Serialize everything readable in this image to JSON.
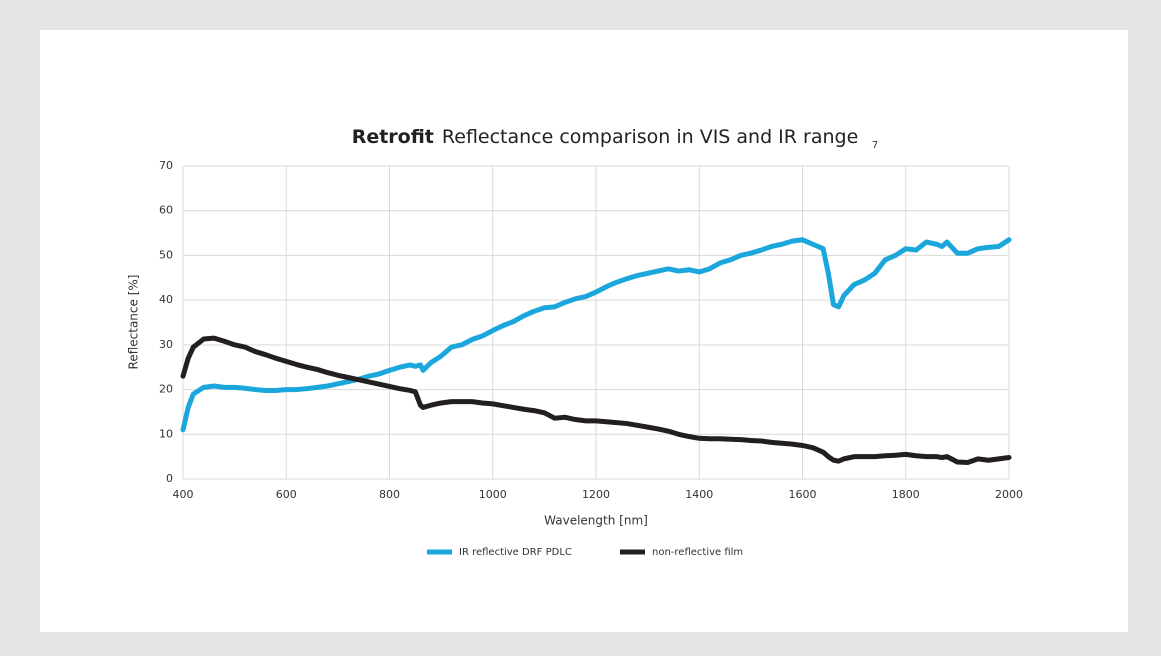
{
  "chart_data": {
    "type": "line",
    "title": "Reflectance comparison in VIS and IR range",
    "title_prefix": "Retrofit",
    "footnote": "7",
    "x_label": "Wavelength [nm]",
    "y_label": "Reflectance  [%]",
    "x": [
      400,
      410,
      420,
      440,
      460,
      480,
      500,
      520,
      540,
      560,
      580,
      600,
      620,
      640,
      660,
      680,
      700,
      720,
      740,
      760,
      780,
      800,
      820,
      840,
      850,
      860,
      865,
      880,
      900,
      920,
      940,
      960,
      980,
      1000,
      1020,
      1040,
      1060,
      1080,
      1100,
      1120,
      1140,
      1160,
      1180,
      1200,
      1220,
      1240,
      1260,
      1280,
      1300,
      1320,
      1340,
      1360,
      1380,
      1400,
      1420,
      1440,
      1460,
      1480,
      1500,
      1520,
      1540,
      1560,
      1580,
      1600,
      1620,
      1640,
      1650,
      1660,
      1670,
      1680,
      1700,
      1720,
      1740,
      1760,
      1780,
      1800,
      1820,
      1840,
      1860,
      1870,
      1880,
      1900,
      1920,
      1940,
      1960,
      1980,
      2000
    ],
    "series": [
      {
        "name": "IR reflective DRF PDLC",
        "color": "#1ba6dc",
        "values": [
          11,
          16,
          19,
          20.5,
          20.8,
          20.5,
          20.5,
          20.3,
          20,
          19.8,
          19.8,
          20,
          20,
          20.2,
          20.5,
          20.8,
          21.3,
          21.8,
          22.3,
          23,
          23.5,
          24.3,
          25,
          25.5,
          25.2,
          25.5,
          24.3,
          26,
          27.5,
          29.5,
          30,
          31.2,
          32,
          33.2,
          34.3,
          35.2,
          36.5,
          37.5,
          38.3,
          38.5,
          39.5,
          40.3,
          40.8,
          41.8,
          43,
          44,
          44.8,
          45.5,
          46,
          46.5,
          47,
          46.5,
          46.8,
          46.3,
          47,
          48.3,
          49,
          50,
          50.5,
          51.2,
          52,
          52.5,
          53.2,
          53.5,
          52.5,
          51.5,
          46,
          39,
          38.5,
          41,
          43.5,
          44.5,
          46,
          49,
          50,
          51.5,
          51.2,
          53,
          52.5,
          52,
          53,
          50.5,
          50.5,
          51.5,
          51.8,
          52,
          53.5
        ]
      },
      {
        "name": "non-reflective film",
        "color": "#231f20",
        "values": [
          23,
          27,
          29.5,
          31.3,
          31.5,
          30.8,
          30,
          29.5,
          28.5,
          27.8,
          27,
          26.3,
          25.6,
          25,
          24.5,
          23.8,
          23.2,
          22.7,
          22.2,
          21.7,
          21.2,
          20.7,
          20.2,
          19.8,
          19.5,
          16.5,
          16,
          16.5,
          17,
          17.3,
          17.3,
          17.3,
          17,
          16.8,
          16.4,
          16,
          15.6,
          15.3,
          14.8,
          13.6,
          13.8,
          13.3,
          13,
          13,
          12.8,
          12.6,
          12.4,
          12,
          11.6,
          11.2,
          10.7,
          10,
          9.5,
          9.1,
          9,
          9,
          8.9,
          8.8,
          8.6,
          8.5,
          8.2,
          8,
          7.8,
          7.5,
          7,
          6,
          5,
          4.2,
          4,
          4.5,
          5,
          5,
          5,
          5.2,
          5.3,
          5.5,
          5.2,
          5,
          5,
          4.8,
          5,
          3.8,
          3.7,
          4.5,
          4.2,
          4.5,
          4.8
        ]
      }
    ],
    "xlim": [
      400,
      2000
    ],
    "xticks": [
      400,
      600,
      800,
      1000,
      1200,
      1400,
      1600,
      1800,
      2000
    ],
    "ylim": [
      0,
      70
    ],
    "yticks": [
      0,
      10,
      20,
      30,
      40,
      50,
      60,
      70
    ],
    "grid": true,
    "legend": "bottom"
  }
}
